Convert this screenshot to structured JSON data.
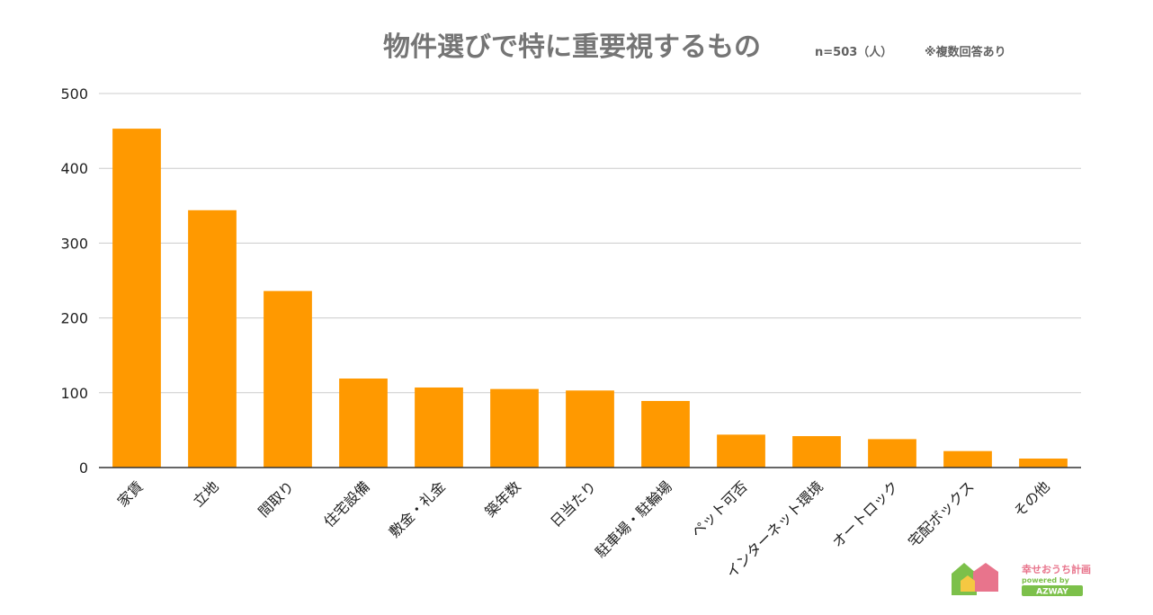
{
  "chart_data": {
    "type": "bar",
    "title": "物件選びで特に重要視するもの",
    "sample_note": "n=503（人）",
    "multi_note": "※複数回答あり",
    "categories": [
      "家賃",
      "立地",
      "間取り",
      "住宅設備",
      "敷金・礼金",
      "築年数",
      "日当たり",
      "駐車場・駐輪場",
      "ペット可否",
      "インターネット環境",
      "オートロック",
      "宅配ボックス",
      "その他"
    ],
    "values": [
      453,
      344,
      236,
      119,
      107,
      105,
      103,
      89,
      44,
      42,
      38,
      22,
      12
    ],
    "yticks": [
      0,
      100,
      200,
      300,
      400,
      500
    ],
    "ylim": [
      0,
      500
    ],
    "xlabel": "",
    "ylabel": "",
    "grid": true,
    "bar_color": "#ff9900"
  },
  "logo": {
    "name": "幸せおうち計画",
    "powered": "powered by",
    "brand": "AZWAY",
    "colors": {
      "green": "#7cc04a",
      "pink": "#e8748c",
      "yellow": "#f5c842"
    }
  }
}
